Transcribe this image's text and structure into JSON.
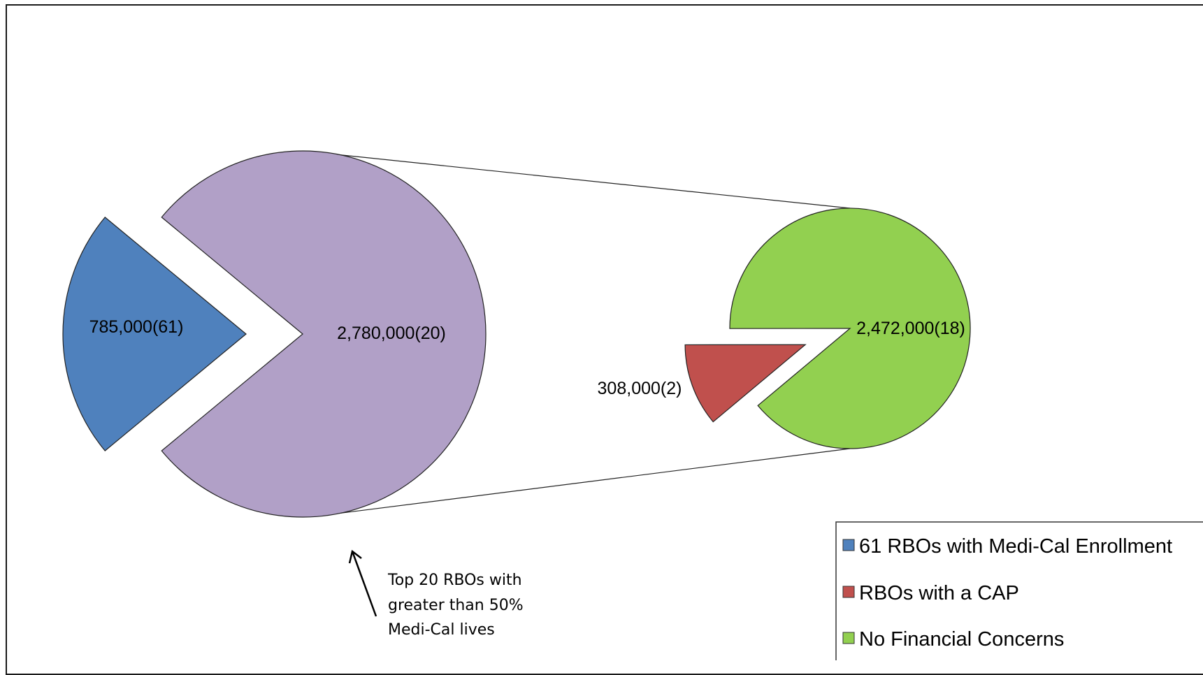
{
  "chart_data": {
    "type": "pie",
    "subtype": "pie-of-pie",
    "main_pie": {
      "slices": [
        {
          "name": "61 RBOs with Medi-Cal Enrollment",
          "value": 785000,
          "count": 61,
          "label": "785,000(61)",
          "color": "#4F81BD"
        },
        {
          "name": "Top 20 RBOs",
          "value": 2780000,
          "count": 20,
          "label": "2,780,000(20)",
          "color": "#B1A0C7"
        }
      ]
    },
    "secondary_pie": {
      "slices": [
        {
          "name": "RBOs with a CAP",
          "value": 308000,
          "count": 2,
          "label": "308,000(2)",
          "color": "#C0504D"
        },
        {
          "name": "No Financial Concerns",
          "value": 2472000,
          "count": 18,
          "label": "2,472,000(18)",
          "color": "#92D050"
        }
      ]
    },
    "annotation": {
      "lines": [
        "Top 20 RBOs with",
        "greater than 50%",
        "Medi-Cal lives"
      ]
    },
    "legend": {
      "placement": "bottom-right",
      "items": [
        {
          "label": "61 RBOs with Medi-Cal Enrollment",
          "color": "#4F81BD"
        },
        {
          "label": "RBOs with a CAP",
          "color": "#C0504D"
        },
        {
          "label": "No Financial Concerns",
          "color": "#92D050"
        }
      ]
    }
  }
}
